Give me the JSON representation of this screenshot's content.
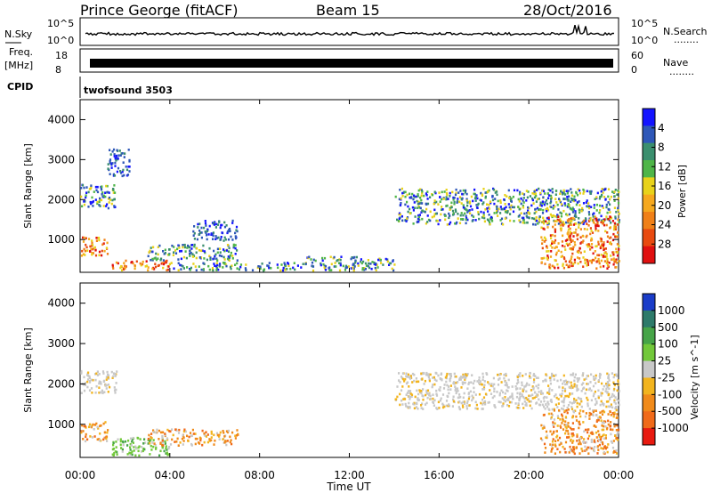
{
  "header": {
    "station": "Prince George (fitACF)",
    "beam": "Beam 15",
    "date": "28/Oct/2016"
  },
  "strips": {
    "nsky_label": "N.Sky",
    "nsky_ticks": [
      "10^5",
      "10^0"
    ],
    "nsearch_label": "N.Search",
    "nsearch_ticks": [
      "10^5",
      "10^0"
    ],
    "freq_label_line1": "Freq.",
    "freq_label_line2": "[MHz]",
    "freq_ticks": [
      "18",
      "8"
    ],
    "nave_label": "Nave",
    "nave_ticks": [
      "60",
      "0"
    ],
    "cpid_label": "CPID",
    "cpid_value": "twofsound 3503",
    "legend_dots": "........"
  },
  "axes": {
    "xlabel": "Time UT",
    "ylabel": "Slant Range [km]",
    "x_ticks": [
      "00:00",
      "04:00",
      "08:00",
      "12:00",
      "16:00",
      "20:00",
      "00:00"
    ],
    "y_ticks": [
      "1000",
      "2000",
      "3000",
      "4000"
    ]
  },
  "chart_data": [
    {
      "type": "heatmap",
      "title": "",
      "xlabel": "Time UT",
      "ylabel": "Slant Range [km]",
      "xlim": [
        "00:00",
        "24:00"
      ],
      "ylim": [
        180,
        4500
      ],
      "colorbar": {
        "label": "Power [dB]",
        "ticks": [
          "4",
          "8",
          "12",
          "16",
          "20",
          "24",
          "28"
        ],
        "colors": [
          "#1414ff",
          "#2e57b8",
          "#3b8f6e",
          "#4fb548",
          "#e8d21a",
          "#f5a81e",
          "#f08018",
          "#e84a10",
          "#e01010"
        ]
      },
      "scatter_regions": [
        {
          "t_start": 0.0,
          "t_end": 1.6,
          "range_lo": 1800,
          "range_hi": 2400,
          "level": "medium"
        },
        {
          "t_start": 0.0,
          "t_end": 1.2,
          "range_lo": 600,
          "range_hi": 1100,
          "level": "high"
        },
        {
          "t_start": 1.2,
          "t_end": 2.2,
          "range_lo": 2600,
          "range_hi": 3300,
          "level": "low"
        },
        {
          "t_start": 1.4,
          "t_end": 4.0,
          "range_lo": 250,
          "range_hi": 500,
          "level": "high"
        },
        {
          "t_start": 3.0,
          "t_end": 7.0,
          "range_lo": 500,
          "range_hi": 900,
          "level": "medium"
        },
        {
          "t_start": 4.0,
          "t_end": 10.0,
          "range_lo": 250,
          "range_hi": 450,
          "level": "medium"
        },
        {
          "t_start": 5.0,
          "t_end": 7.0,
          "range_lo": 1000,
          "range_hi": 1500,
          "level": "low"
        },
        {
          "t_start": 10.0,
          "t_end": 14.0,
          "range_lo": 250,
          "range_hi": 600,
          "level": "medium"
        },
        {
          "t_start": 14.0,
          "t_end": 24.0,
          "range_lo": 1400,
          "range_hi": 2300,
          "level": "medium"
        },
        {
          "t_start": 20.5,
          "t_end": 24.0,
          "range_lo": 300,
          "range_hi": 1600,
          "level": "high"
        }
      ]
    },
    {
      "type": "heatmap",
      "title": "",
      "xlabel": "Time UT",
      "ylabel": "Slant Range [km]",
      "xlim": [
        "00:00",
        "24:00"
      ],
      "ylim": [
        180,
        4500
      ],
      "colorbar": {
        "label": "Velocity [m s^-1]",
        "ticks": [
          "1000",
          "500",
          "100",
          "25",
          "-25",
          "-100",
          "-500",
          "-1000"
        ],
        "colors": [
          "#1a3cc8",
          "#2d7a6a",
          "#46a448",
          "#72c83a",
          "#c8c8c8",
          "#f2b41e",
          "#f08a1a",
          "#f06a1a",
          "#e81a10"
        ]
      },
      "scatter_regions": [
        {
          "t_start": 0.0,
          "t_end": 1.6,
          "range_lo": 1800,
          "range_hi": 2400,
          "level": "ground"
        },
        {
          "t_start": 0.0,
          "t_end": 1.2,
          "range_lo": 600,
          "range_hi": 1100,
          "level": "negative"
        },
        {
          "t_start": 1.4,
          "t_end": 4.0,
          "range_lo": 250,
          "range_hi": 700,
          "level": "positive"
        },
        {
          "t_start": 3.0,
          "t_end": 7.0,
          "range_lo": 500,
          "range_hi": 900,
          "level": "negative"
        },
        {
          "t_start": 14.0,
          "t_end": 24.0,
          "range_lo": 1400,
          "range_hi": 2300,
          "level": "ground"
        },
        {
          "t_start": 20.5,
          "t_end": 24.0,
          "range_lo": 300,
          "range_hi": 1400,
          "level": "negative"
        }
      ]
    }
  ]
}
